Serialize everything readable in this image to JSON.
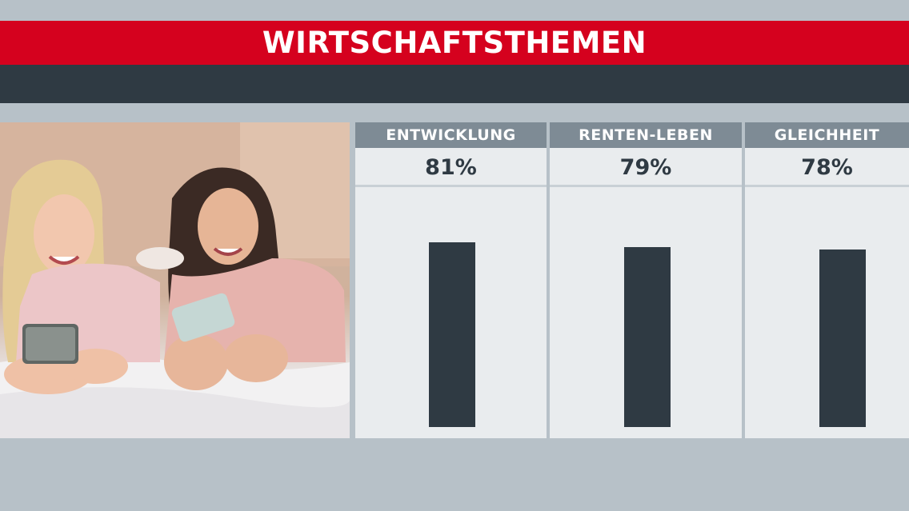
{
  "header": {
    "title": "WIRTSCHAFTSTHEMEN"
  },
  "colors": {
    "brand_red": "#d5011e",
    "dark": "#2f3a43",
    "column_header": "#7e8b95",
    "panel": "#e9ecee",
    "background": "#b7c1c8"
  },
  "photo": {
    "description_icon": "two-young-women-with-smartphones-photo"
  },
  "chart_data": {
    "type": "bar",
    "title": "WIRTSCHAFTSTHEMEN",
    "categories": [
      "ENTWICKLUNG",
      "RENTEN-LEBEN",
      "GLEICHHEIT"
    ],
    "values": [
      81,
      79,
      78
    ],
    "value_labels": [
      "81%",
      "79%",
      "78%"
    ],
    "unit": "%",
    "ylim": [
      0,
      100
    ],
    "grid": false,
    "legend": "none"
  }
}
